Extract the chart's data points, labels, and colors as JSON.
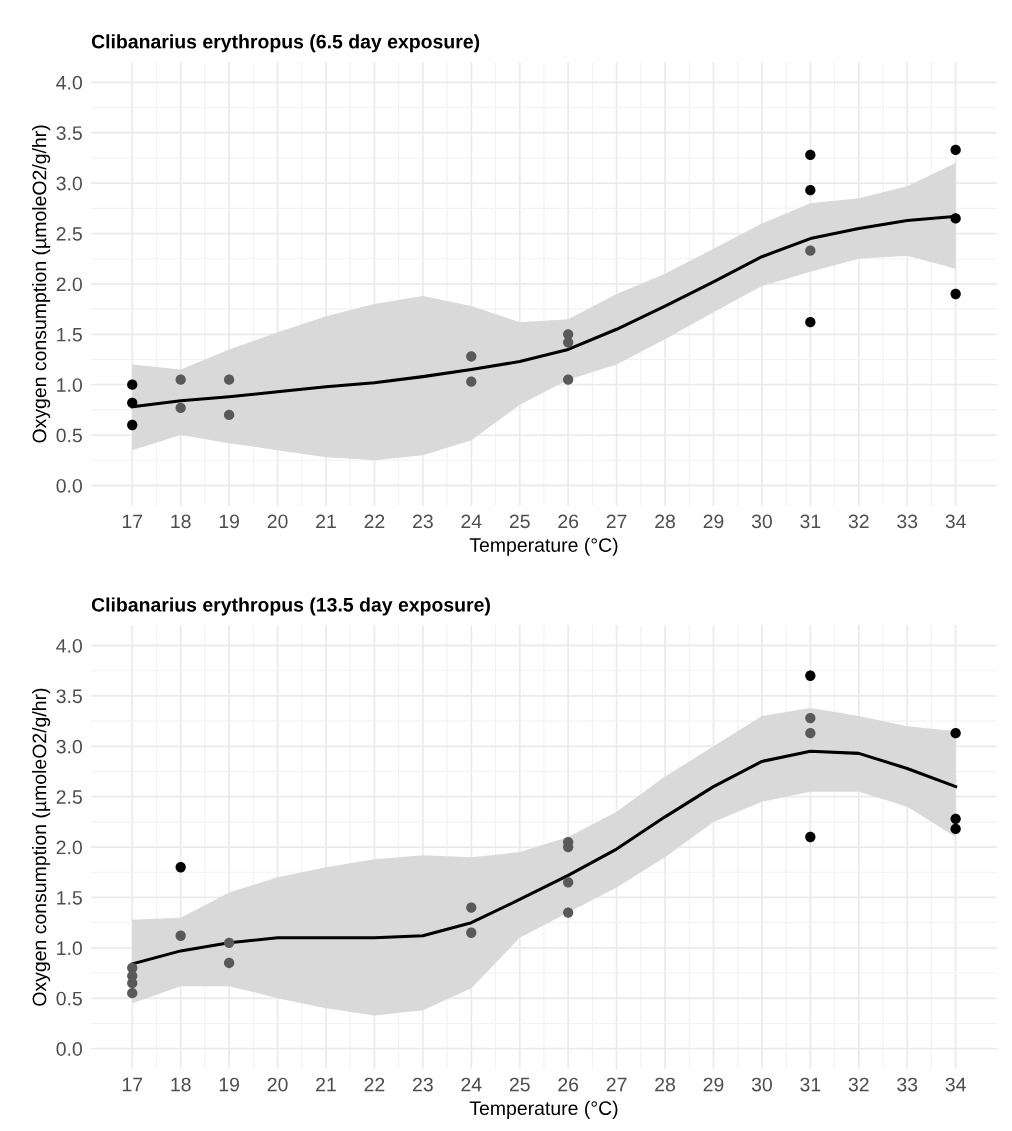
{
  "chart_data": [
    {
      "type": "scatter",
      "title": "Clibanarius erythropus (6.5 day exposure)",
      "xlabel": "Temperature (°C)",
      "ylabel": "Oxygen consumption (µmoleO2/g/hr)",
      "xlim": [
        16.15,
        34.85
      ],
      "ylim": [
        -0.2,
        4.2
      ],
      "xticks": [
        17,
        18,
        19,
        20,
        21,
        22,
        23,
        24,
        25,
        26,
        27,
        28,
        29,
        30,
        31,
        32,
        33,
        34
      ],
      "yticks": [
        {
          "value": 0,
          "label": "0.0"
        },
        {
          "value": 0.5,
          "label": "0.5"
        },
        {
          "value": 1,
          "label": "1.0"
        },
        {
          "value": 1.5,
          "label": "1.5"
        },
        {
          "value": 2,
          "label": "2.0"
        },
        {
          "value": 2.5,
          "label": "2.5"
        },
        {
          "value": 3,
          "label": "3.0"
        },
        {
          "value": 3.5,
          "label": "3.5"
        },
        {
          "value": 4,
          "label": "4.0"
        }
      ],
      "grid": true,
      "marker": "circle",
      "series": [
        {
          "type": "line",
          "color": "#000000",
          "line_style": "solid",
          "marker": "none",
          "x": [
            17,
            18,
            19,
            20,
            21,
            22,
            23,
            24,
            25,
            26,
            27,
            28,
            29,
            30,
            31,
            32,
            33,
            34
          ],
          "values": [
            0.78,
            0.84,
            0.88,
            0.93,
            0.98,
            1.02,
            1.08,
            1.15,
            1.23,
            1.35,
            1.55,
            1.78,
            2.02,
            2.27,
            2.45,
            2.55,
            2.63,
            2.67
          ],
          "lower": [
            0.35,
            0.5,
            0.42,
            0.35,
            0.28,
            0.25,
            0.3,
            0.45,
            0.8,
            1.05,
            1.2,
            1.45,
            1.72,
            1.98,
            2.12,
            2.25,
            2.28,
            2.15
          ],
          "upper": [
            1.2,
            1.15,
            1.35,
            1.52,
            1.68,
            1.8,
            1.88,
            1.78,
            1.62,
            1.65,
            1.9,
            2.1,
            2.35,
            2.6,
            2.8,
            2.85,
            2.97,
            3.2
          ]
        },
        {
          "x": [
            17,
            17,
            17,
            18,
            18,
            19,
            19,
            24,
            24,
            26,
            26,
            26,
            31,
            31,
            31,
            31,
            34,
            34,
            34
          ],
          "values": [
            1.0,
            0.82,
            0.6,
            1.05,
            0.77,
            1.05,
            0.7,
            1.28,
            1.03,
            1.5,
            1.42,
            1.05,
            3.28,
            2.93,
            2.33,
            1.62,
            3.33,
            2.65,
            1.9
          ],
          "colors": [
            "#000000",
            "#000000",
            "#000000",
            "#595959",
            "#595959",
            "#595959",
            "#595959",
            "#595959",
            "#595959",
            "#595959",
            "#595959",
            "#595959",
            "#000000",
            "#000000",
            "#595959",
            "#000000",
            "#000000",
            "#000000",
            "#000000"
          ]
        }
      ]
    },
    {
      "type": "scatter",
      "title": "Clibanarius erythropus (13.5 day exposure)",
      "xlabel": "Temperature (°C)",
      "ylabel": "Oxygen consumption (µmoleO2/g/hr)",
      "xlim": [
        16.15,
        34.85
      ],
      "ylim": [
        -0.2,
        4.2
      ],
      "xticks": [
        17,
        18,
        19,
        20,
        21,
        22,
        23,
        24,
        25,
        26,
        27,
        28,
        29,
        30,
        31,
        32,
        33,
        34
      ],
      "yticks": [
        {
          "value": 0,
          "label": "0.0"
        },
        {
          "value": 0.5,
          "label": "0.5"
        },
        {
          "value": 1,
          "label": "1.0"
        },
        {
          "value": 1.5,
          "label": "1.5"
        },
        {
          "value": 2,
          "label": "2.0"
        },
        {
          "value": 2.5,
          "label": "2.5"
        },
        {
          "value": 3,
          "label": "3.0"
        },
        {
          "value": 3.5,
          "label": "3.5"
        },
        {
          "value": 4,
          "label": "4.0"
        }
      ],
      "grid": true,
      "marker": "circle",
      "series": [
        {
          "type": "line",
          "color": "#000000",
          "line_style": "solid",
          "marker": "none",
          "x": [
            17,
            18,
            19,
            20,
            21,
            22,
            23,
            24,
            25,
            26,
            27,
            28,
            29,
            30,
            31,
            32,
            33,
            34
          ],
          "values": [
            0.84,
            0.97,
            1.05,
            1.1,
            1.1,
            1.1,
            1.12,
            1.25,
            1.48,
            1.72,
            1.98,
            2.3,
            2.6,
            2.85,
            2.95,
            2.93,
            2.78,
            2.6
          ],
          "lower": [
            0.45,
            0.62,
            0.62,
            0.5,
            0.4,
            0.33,
            0.38,
            0.6,
            1.1,
            1.35,
            1.6,
            1.9,
            2.25,
            2.45,
            2.55,
            2.55,
            2.4,
            2.1
          ],
          "upper": [
            1.28,
            1.3,
            1.55,
            1.7,
            1.8,
            1.88,
            1.92,
            1.9,
            1.95,
            2.1,
            2.35,
            2.7,
            3.0,
            3.3,
            3.38,
            3.3,
            3.2,
            3.15
          ]
        },
        {
          "x": [
            17,
            17,
            17,
            17,
            18,
            18,
            19,
            19,
            24,
            24,
            26,
            26,
            26,
            26,
            31,
            31,
            31,
            31,
            34,
            34,
            34
          ],
          "values": [
            0.55,
            0.65,
            0.72,
            0.8,
            1.8,
            1.12,
            1.05,
            0.85,
            1.4,
            1.15,
            2.05,
            2.0,
            1.65,
            1.35,
            3.7,
            3.28,
            3.13,
            2.1,
            3.13,
            2.28,
            2.18
          ],
          "colors": [
            "#595959",
            "#595959",
            "#595959",
            "#595959",
            "#000000",
            "#595959",
            "#595959",
            "#595959",
            "#595959",
            "#595959",
            "#595959",
            "#595959",
            "#595959",
            "#595959",
            "#000000",
            "#595959",
            "#595959",
            "#000000",
            "#000000",
            "#000000",
            "#000000"
          ]
        }
      ]
    }
  ]
}
